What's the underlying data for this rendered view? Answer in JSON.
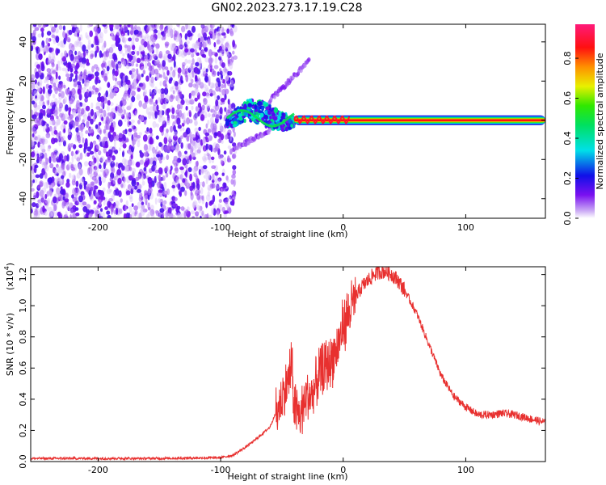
{
  "title": "GN02.2023.273.17.19.C28",
  "colors": {
    "snr_line": "#e8302f",
    "frame": "#000000",
    "noise_purple": "#7a1ff0",
    "background": "#ffffff"
  },
  "chart_data": [
    {
      "type": "heatmap",
      "title": "GN02.2023.273.17.19.C28",
      "xlabel": "Height of straight line (km)",
      "ylabel": "Frequency (Hz)",
      "xlim": [
        -255,
        165
      ],
      "ylim": [
        -50,
        49
      ],
      "x_ticks": [
        -200,
        -100,
        0,
        100
      ],
      "x_tick_labels": [
        "-200",
        "-100",
        "0",
        "100"
      ],
      "y_ticks": [
        -40,
        -20,
        0,
        20,
        40
      ],
      "y_tick_labels": [
        "-40",
        "-20",
        "0",
        "20",
        "40"
      ],
      "regions": [
        {
          "name": "noise",
          "x_range": [
            -255,
            -88
          ],
          "freq_range": [
            -50,
            49
          ],
          "amplitude": 0.15
        },
        {
          "name": "signal_onset",
          "x_range": [
            -95,
            -40
          ],
          "freq_center": 3,
          "freq_spread": 6,
          "amplitude": 0.4
        },
        {
          "name": "upper_branch",
          "x": [
            -60,
            -28
          ],
          "freq": [
            10,
            30
          ],
          "amplitude": 0.12
        },
        {
          "name": "lower_branch",
          "x": [
            -90,
            -60
          ],
          "freq": [
            -15,
            -5
          ],
          "amplitude": 0.12
        },
        {
          "name": "carrier",
          "x_range": [
            -40,
            165
          ],
          "freq": 0,
          "amplitude": 0.95
        }
      ],
      "colorbar": {
        "label": "Normalized spectral amplitude",
        "ticks": [
          0.0,
          0.2,
          0.4,
          0.6,
          0.8
        ],
        "tick_labels": [
          "0.0",
          "0.2",
          "0.4",
          "0.6",
          "0.8"
        ],
        "range": [
          0,
          0.97
        ]
      },
      "grid": false
    },
    {
      "type": "line",
      "xlabel": "Height of straight line (km)",
      "ylabel": "SNR (10 * v/v)",
      "scale_label_base": "(x10",
      "scale_label_exp": "4",
      "scale_label_end": ")",
      "xlim": [
        -255,
        165
      ],
      "ylim": [
        0,
        1.25
      ],
      "x_ticks": [
        -200,
        -100,
        0,
        100
      ],
      "x_tick_labels": [
        "-200",
        "-100",
        "0",
        "100"
      ],
      "y_ticks": [
        0.0,
        0.2,
        0.4,
        0.6,
        0.8,
        1.0,
        1.2
      ],
      "y_tick_labels": [
        "0.0",
        "0.2",
        "0.4",
        "0.6",
        "0.8",
        "1.0",
        "1.2"
      ],
      "series": [
        {
          "x": [
            -255,
            -200,
            -150,
            -100,
            -90,
            -80,
            -70,
            -60,
            -50,
            -45,
            -42,
            -40,
            -38,
            -35,
            -30,
            -25,
            -20,
            -15,
            -10,
            -5,
            0,
            5,
            10,
            15,
            20,
            25,
            30,
            35,
            40,
            45,
            50,
            60,
            70,
            80,
            90,
            100,
            110,
            120,
            130,
            140,
            150,
            165
          ],
          "values": [
            0.02,
            0.02,
            0.02,
            0.025,
            0.04,
            0.09,
            0.15,
            0.22,
            0.4,
            0.52,
            0.62,
            0.35,
            0.3,
            0.3,
            0.42,
            0.42,
            0.55,
            0.6,
            0.65,
            0.72,
            0.88,
            0.96,
            1.05,
            1.12,
            1.16,
            1.2,
            1.22,
            1.22,
            1.2,
            1.16,
            1.1,
            0.95,
            0.75,
            0.55,
            0.42,
            0.35,
            0.3,
            0.3,
            0.31,
            0.3,
            0.28,
            0.25
          ]
        }
      ],
      "grid": false
    }
  ]
}
